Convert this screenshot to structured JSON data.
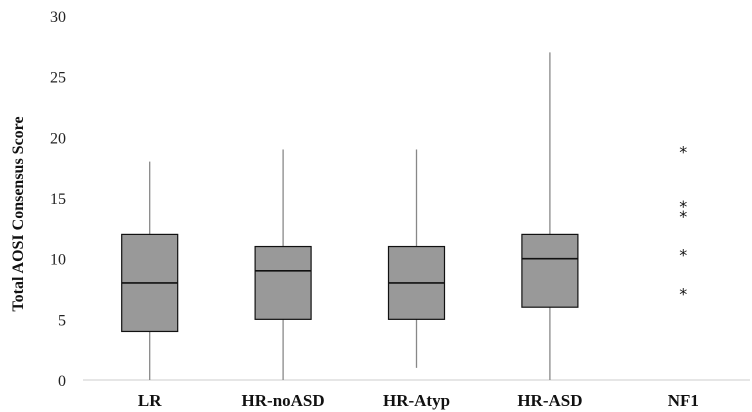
{
  "chart_data": {
    "type": "box",
    "title": "",
    "xlabel": "",
    "ylabel": "Total AOSI Consensus Score",
    "ylim": [
      0,
      30
    ],
    "yticks": [
      0,
      5,
      10,
      15,
      20,
      25,
      30
    ],
    "grid": false,
    "legend": "none",
    "box_color": "#999999",
    "outline_color": "#111111",
    "whisker_color": "#888888",
    "categories": [
      "LR",
      "HR-noASD",
      "HR-Atyp",
      "HR-ASD",
      "NF1"
    ],
    "boxes": [
      {
        "category": "LR",
        "min": 0,
        "q1": 4,
        "median": 8,
        "q3": 12,
        "max": 18
      },
      {
        "category": "HR-noASD",
        "min": 0,
        "q1": 5,
        "median": 9,
        "q3": 11,
        "max": 19
      },
      {
        "category": "HR-Atyp",
        "min": 1,
        "q1": 5,
        "median": 8,
        "q3": 11,
        "max": 19
      },
      {
        "category": "HR-ASD",
        "min": 0,
        "q1": 6,
        "median": 10,
        "q3": 12,
        "max": 27
      }
    ],
    "points": [
      {
        "category": "NF1",
        "marker": "*",
        "values": [
          19,
          14.5,
          13.7,
          10.5,
          7.3
        ]
      }
    ]
  }
}
